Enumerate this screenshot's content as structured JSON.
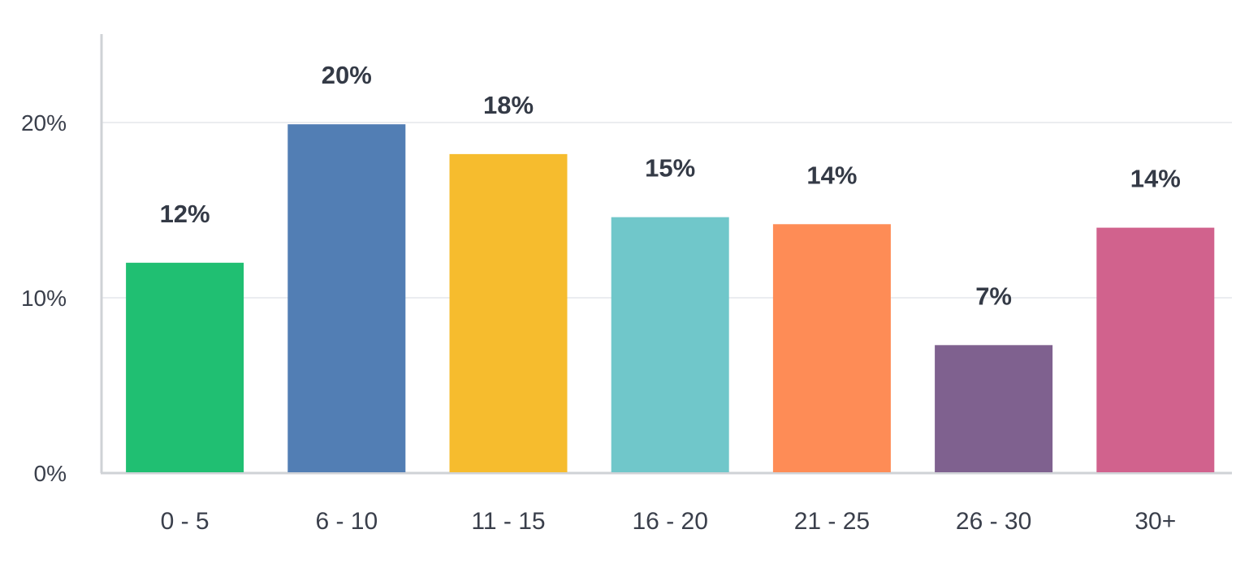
{
  "chart_data": {
    "type": "bar",
    "title": "",
    "xlabel": "",
    "ylabel": "",
    "categories": [
      "0 - 5",
      "6 - 10",
      "11 - 15",
      "16 - 20",
      "21 - 25",
      "26 - 30",
      "30+"
    ],
    "values": [
      12,
      20,
      18,
      15,
      14,
      7,
      14
    ],
    "plotted_values": [
      12.0,
      19.9,
      18.2,
      14.6,
      14.2,
      7.3,
      14.0
    ],
    "data_labels": [
      "12%",
      "20%",
      "18%",
      "15%",
      "14%",
      "7%",
      "14%"
    ],
    "ylim": [
      0,
      25
    ],
    "y_ticks": [
      0,
      10,
      20
    ],
    "y_tick_labels": [
      "0%",
      "10%",
      "20%"
    ],
    "grid": true,
    "legend": "none",
    "colors": [
      "#20bf72",
      "#527eb4",
      "#f6bc2e",
      "#70c7ca",
      "#fe8c56",
      "#7f618f",
      "#d1628d"
    ]
  }
}
